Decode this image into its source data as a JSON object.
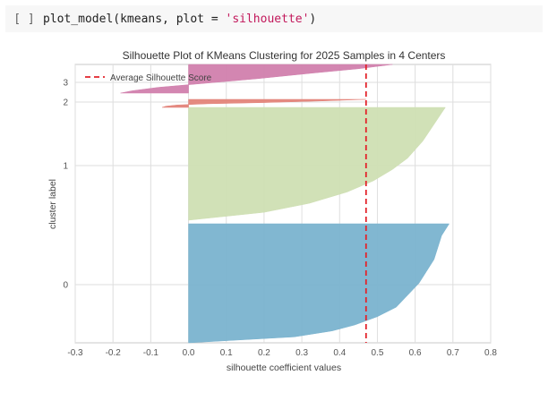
{
  "cell": {
    "run_indicator": "[ ]",
    "code_prefix": "plot_model(kmeans, plot = ",
    "code_string": "'silhouette'",
    "code_suffix": ")"
  },
  "chart_data": {
    "type": "area",
    "title": "Silhouette Plot of KMeans Clustering for 2025 Samples in 4 Centers",
    "xlabel": "silhouette coefficient values",
    "ylabel": "cluster label",
    "xlim": [
      -0.3,
      0.8
    ],
    "x_ticks": [
      "-0.3",
      "-0.2",
      "-0.1",
      "0.0",
      "0.1",
      "0.2",
      "0.3",
      "0.4",
      "0.5",
      "0.6",
      "0.7",
      "0.8"
    ],
    "y_ticks": [
      "0",
      "1",
      "2",
      "3"
    ],
    "grid": true,
    "legend": {
      "placement": "top-left",
      "entries": [
        "Average Silhouette Score"
      ]
    },
    "average_silhouette_score": 0.47,
    "series": [
      {
        "name": "0",
        "color": "#7ab3cf",
        "min_value": 0.0,
        "max_value": 0.69,
        "profile": [
          [
            0,
            0.69
          ],
          [
            0.05,
            0.68
          ],
          [
            0.1,
            0.67
          ],
          [
            0.2,
            0.66
          ],
          [
            0.3,
            0.65
          ],
          [
            0.4,
            0.63
          ],
          [
            0.5,
            0.61
          ],
          [
            0.6,
            0.58
          ],
          [
            0.7,
            0.55
          ],
          [
            0.78,
            0.5
          ],
          [
            0.85,
            0.44
          ],
          [
            0.9,
            0.38
          ],
          [
            0.95,
            0.28
          ],
          [
            1.0,
            0.0
          ]
        ]
      },
      {
        "name": "1",
        "color": "#cfdfb3",
        "min_value": 0.0,
        "max_value": 0.68,
        "profile": [
          [
            0,
            0.68
          ],
          [
            0.05,
            0.67
          ],
          [
            0.1,
            0.66
          ],
          [
            0.2,
            0.64
          ],
          [
            0.3,
            0.62
          ],
          [
            0.45,
            0.58
          ],
          [
            0.55,
            0.54
          ],
          [
            0.65,
            0.49
          ],
          [
            0.75,
            0.42
          ],
          [
            0.85,
            0.32
          ],
          [
            0.93,
            0.2
          ],
          [
            1.0,
            0.0
          ]
        ]
      },
      {
        "name": "2",
        "color": "#e3847a",
        "min_value": -0.07,
        "max_value": 0.47,
        "profile": [
          [
            0,
            0.47
          ],
          [
            0.2,
            0.35
          ],
          [
            0.4,
            0.2
          ],
          [
            0.55,
            0.05
          ],
          [
            0.7,
            -0.03
          ],
          [
            0.85,
            -0.06
          ],
          [
            1.0,
            -0.07
          ]
        ]
      },
      {
        "name": "3",
        "color": "#d180ad",
        "min_value": -0.18,
        "max_value": 0.54,
        "profile": [
          [
            0,
            0.54
          ],
          [
            0.15,
            0.45
          ],
          [
            0.3,
            0.33
          ],
          [
            0.5,
            0.18
          ],
          [
            0.65,
            0.05
          ],
          [
            0.8,
            -0.08
          ],
          [
            0.92,
            -0.15
          ],
          [
            1.0,
            -0.18
          ]
        ]
      }
    ]
  }
}
